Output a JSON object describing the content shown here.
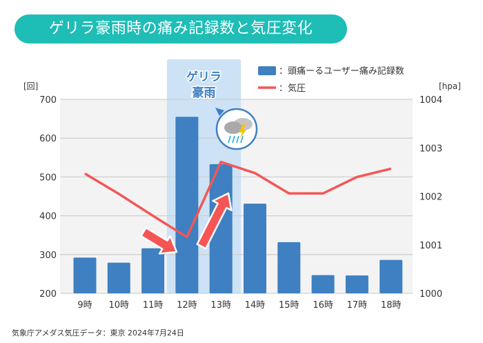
{
  "title": "ゲリラ豪雨時の痛み記録数と気圧変化",
  "source": "気象庁アメダス気圧データ：東京 2024年7月24日",
  "highlight_label": [
    "ゲリラ",
    "豪雨"
  ],
  "icons": {
    "weather": "thunderstorm-rain-icon",
    "arrows": [
      "arrow-down-right-icon",
      "arrow-up-right-icon"
    ]
  },
  "chart_data": {
    "type": "bar+line",
    "categories": [
      "9時",
      "10時",
      "11時",
      "12時",
      "13時",
      "14時",
      "15時",
      "16時",
      "17時",
      "18時"
    ],
    "series": [
      {
        "name": "：頭痛ーるユーザー痛み記録数",
        "type": "bar",
        "axis": "left",
        "color": "#3e80c1",
        "values": [
          292,
          279,
          316,
          655,
          533,
          431,
          332,
          247,
          246,
          286
        ]
      },
      {
        "name": "：気圧",
        "type": "line",
        "axis": "right",
        "color": "#f55555",
        "values": [
          1002.47,
          1002.05,
          1001.6,
          1001.16,
          1002.71,
          1002.48,
          1002.06,
          1002.06,
          1002.4,
          1002.57
        ]
      }
    ],
    "left_axis": {
      "label": "[回]",
      "ylim": [
        200,
        700
      ],
      "ticks": [
        "200",
        "300",
        "400",
        "500",
        "600",
        "700"
      ]
    },
    "right_axis": {
      "label": "[hpa]",
      "ylim": [
        1000,
        1004
      ],
      "ticks": [
        "1000",
        "1001",
        "1002",
        "1003",
        "1004"
      ]
    },
    "highlight_categories": [
      "12時",
      "13時"
    ],
    "grid": true,
    "legend": "top-right"
  }
}
